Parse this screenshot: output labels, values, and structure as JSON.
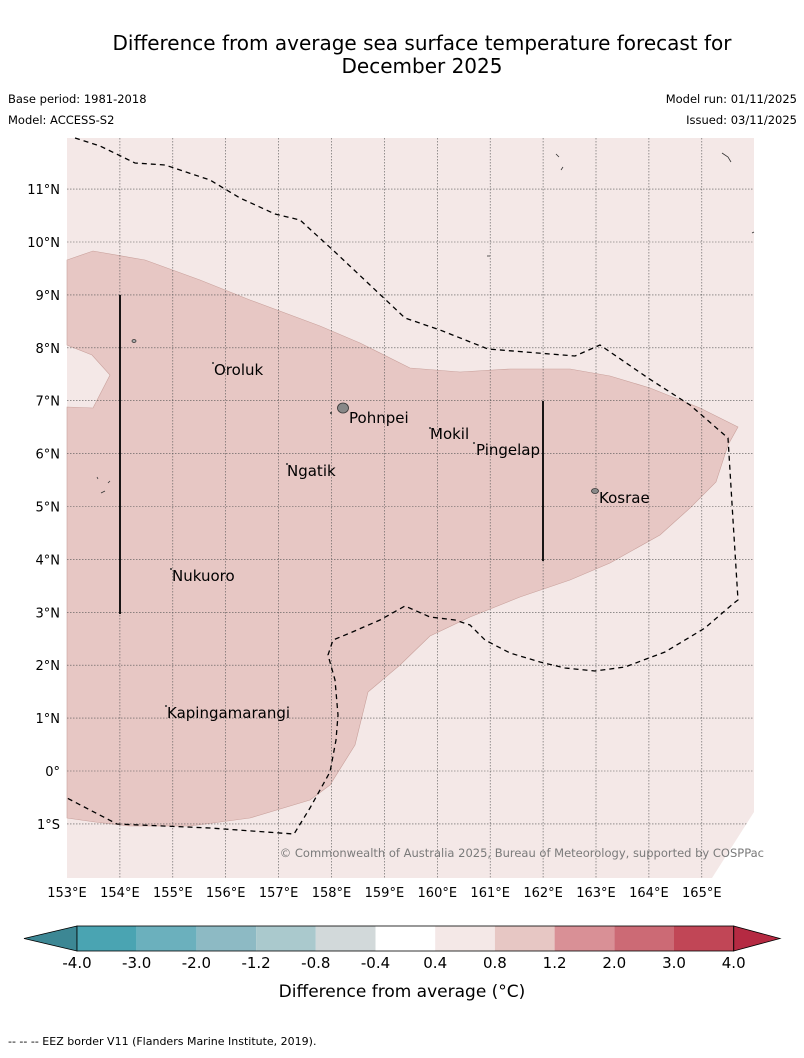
{
  "header": {
    "title_line1": "Difference from average sea surface temperature forecast for",
    "title_line2": "December 2025",
    "base_period": "Base period: 1981-2018",
    "model": "Model: ACCESS-S2",
    "model_run": "Model run: 01/11/2025",
    "issued": "Issued: 03/11/2025"
  },
  "map": {
    "lat_labels": [
      "11°N",
      "10°N",
      "9°N",
      "8°N",
      "7°N",
      "6°N",
      "5°N",
      "4°N",
      "3°N",
      "2°N",
      "1°N",
      "0°",
      "1°S"
    ],
    "lon_labels": [
      "153°E",
      "154°E",
      "155°E",
      "156°E",
      "157°E",
      "158°E",
      "159°E",
      "160°E",
      "161°E",
      "162°E",
      "163°E",
      "164°E",
      "165°E"
    ],
    "places": [
      "Oroluk",
      "Pohnpei",
      "Mokil",
      "Pingelap",
      "Ngatik",
      "Kosrae",
      "Nukuoro",
      "Kapingamarangi"
    ],
    "copyright": "© Commonwealth of Australia 2025, Bureau of Meteorology, supported by COSPPac",
    "region_colors": {
      "0.4_to_0.8": "#f4e8e7",
      "0.8_to_1.2": "#e7c7c4"
    }
  },
  "colorbar": {
    "label": "Difference from average (°C)",
    "tick_labels": [
      "-4.0",
      "-3.0",
      "-2.0",
      "-1.2",
      "-0.8",
      "-0.4",
      "0.4",
      "0.8",
      "1.2",
      "2.0",
      "3.0",
      "4.0"
    ],
    "colors": [
      "#4aa4b2",
      "#6bb0bd",
      "#8dbac4",
      "#aac9cd",
      "#d2d9da",
      "#ffffff",
      "#f4e8e7",
      "#e7c7c4",
      "#d99096",
      "#cc6a75",
      "#c14656"
    ],
    "extend_low_color": "#3c8794",
    "extend_high_color": "#b52a42"
  },
  "footnote": "--  --  -- EEZ border V11 (Flanders Marine Institute, 2019)."
}
